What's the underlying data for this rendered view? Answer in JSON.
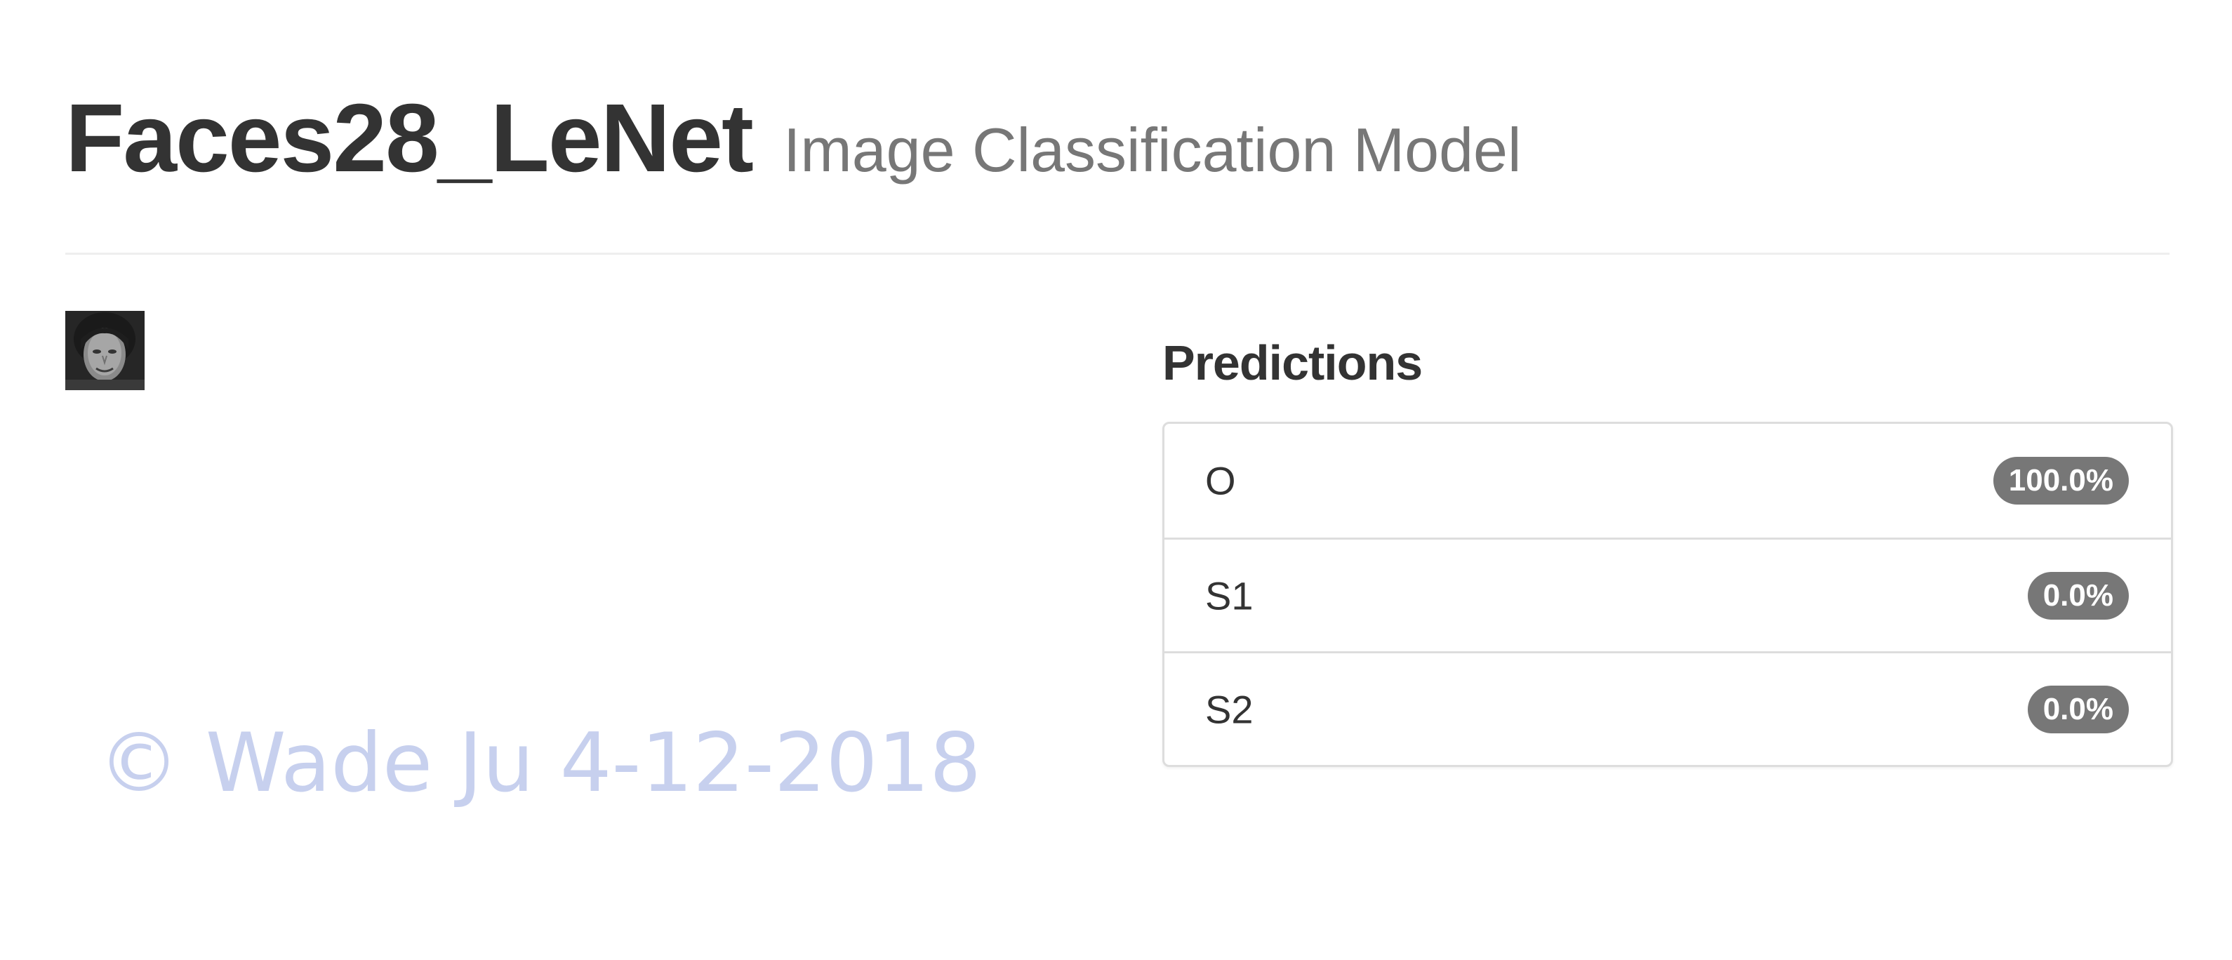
{
  "header": {
    "title": "Faces28_LeNet",
    "subtitle": "Image Classification Model"
  },
  "input_image": {
    "description_icon": "face-thumbnail"
  },
  "watermark": "© Wade Ju 4-12-2018",
  "predictions": {
    "heading": "Predictions",
    "items": [
      {
        "label": "O",
        "score": "100.0%"
      },
      {
        "label": "S1",
        "score": "0.0%"
      },
      {
        "label": "S2",
        "score": "0.0%"
      }
    ]
  },
  "colors": {
    "badge": "#777777",
    "watermark": "#c7d0ee",
    "title": "#333333",
    "subtitle": "#777777"
  }
}
